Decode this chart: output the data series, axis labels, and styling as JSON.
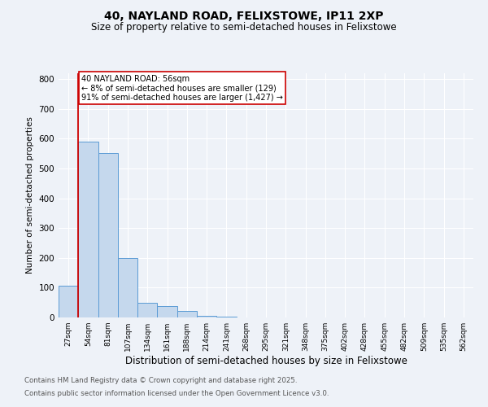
{
  "title1": "40, NAYLAND ROAD, FELIXSTOWE, IP11 2XP",
  "title2": "Size of property relative to semi-detached houses in Felixstowe",
  "xlabel": "Distribution of semi-detached houses by size in Felixstowe",
  "ylabel": "Number of semi-detached properties",
  "categories": [
    "27sqm",
    "54sqm",
    "81sqm",
    "107sqm",
    "134sqm",
    "161sqm",
    "188sqm",
    "214sqm",
    "241sqm",
    "268sqm",
    "295sqm",
    "321sqm",
    "348sqm",
    "375sqm",
    "402sqm",
    "428sqm",
    "455sqm",
    "482sqm",
    "509sqm",
    "535sqm",
    "562sqm"
  ],
  "bar_values": [
    107,
    590,
    553,
    200,
    50,
    37,
    22,
    5,
    2,
    0,
    0,
    0,
    0,
    0,
    0,
    0,
    0,
    0,
    0,
    0,
    0
  ],
  "bar_color": "#c5d8ed",
  "bar_edge_color": "#5b9bd5",
  "vline_color": "#cc0000",
  "annotation_title": "40 NAYLAND ROAD: 56sqm",
  "annotation_line1": "← 8% of semi-detached houses are smaller (129)",
  "annotation_line2": "91% of semi-detached houses are larger (1,427) →",
  "annotation_box_color": "#ffffff",
  "annotation_box_edge": "#cc0000",
  "ylim": [
    0,
    820
  ],
  "yticks": [
    0,
    100,
    200,
    300,
    400,
    500,
    600,
    700,
    800
  ],
  "footnote1": "Contains HM Land Registry data © Crown copyright and database right 2025.",
  "footnote2": "Contains public sector information licensed under the Open Government Licence v3.0.",
  "background_color": "#eef2f8",
  "plot_background": "#eef2f8",
  "grid_color": "#ffffff"
}
